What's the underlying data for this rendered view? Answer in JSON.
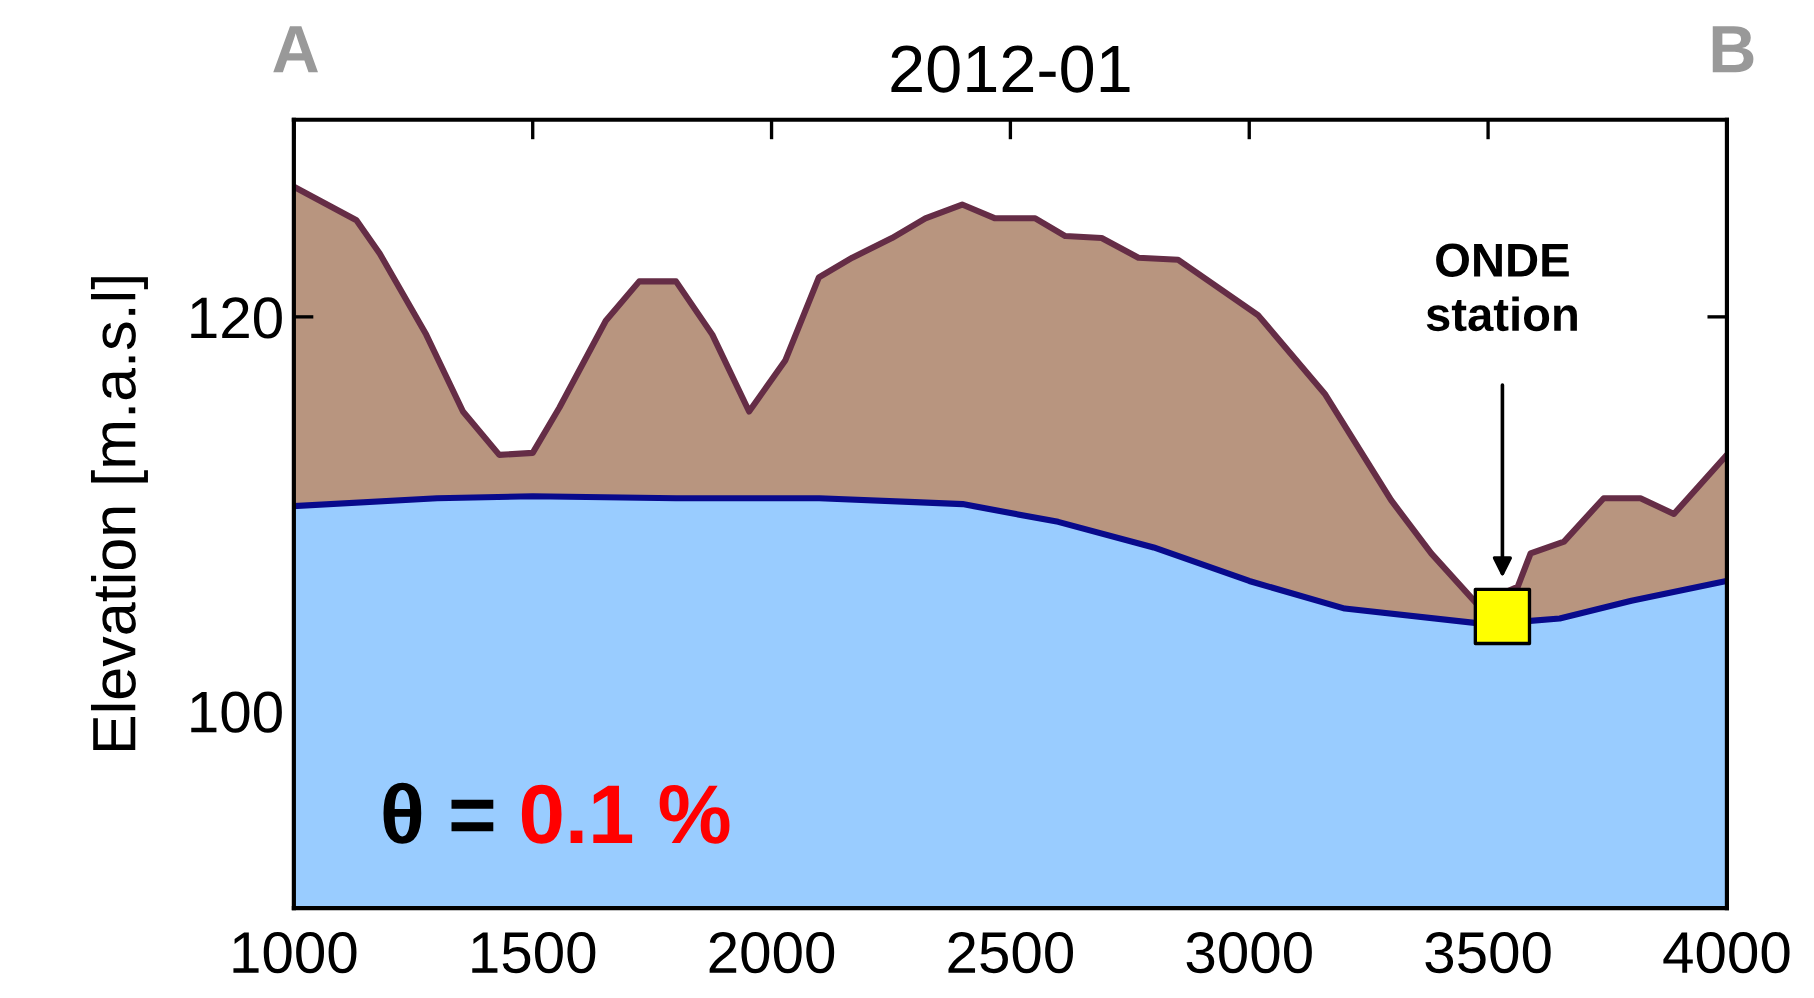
{
  "chart_data": {
    "type": "area",
    "title": "2012-01",
    "ylabel": "Elevation [m.a.s.l]",
    "xlim": [
      1000,
      4000
    ],
    "xticks": [
      1000,
      1500,
      2000,
      2500,
      3000,
      3500,
      4000
    ],
    "ylim": [
      90,
      130
    ],
    "yticks": [
      100,
      120
    ],
    "grid": false,
    "legend": false,
    "annotations": [
      "A",
      "B",
      "ONDE\nstation",
      "θ =",
      "0.1 %"
    ],
    "series": [
      {
        "color": "#b8957f",
        "x": [
          1000,
          1131,
          1180,
          1277,
          1354,
          1430,
          1500,
          1556,
          1653,
          1723,
          1800,
          1876,
          1953,
          2029,
          2099,
          2169,
          2252,
          2322,
          2399,
          2468,
          2552,
          2615,
          2691,
          2768,
          2851,
          3018,
          3158,
          3297,
          3381,
          3478,
          3562,
          3589,
          3659,
          3742,
          3819,
          3889,
          4000
        ],
        "values": [
          126.6,
          124.9,
          123.2,
          119.1,
          115.2,
          113.0,
          113.1,
          115.4,
          119.8,
          121.8,
          121.8,
          119.1,
          115.2,
          117.8,
          122.0,
          123.0,
          124.0,
          125.0,
          125.7,
          125.0,
          125.0,
          124.1,
          124.0,
          123.0,
          122.9,
          120.1,
          116.1,
          110.7,
          108.0,
          105.4,
          106.3,
          108.0,
          108.6,
          110.8,
          110.8,
          110.0,
          113.0
        ]
      },
      {
        "color": "#99ccff",
        "x": [
          1000,
          1300,
          1500,
          1800,
          2100,
          2300,
          2400,
          2600,
          2800,
          3000,
          3200,
          3500,
          3650,
          3800,
          4000
        ],
        "values": [
          110.4,
          110.8,
          110.9,
          110.8,
          110.8,
          110.6,
          110.5,
          109.6,
          108.3,
          106.6,
          105.2,
          104.4,
          104.7,
          105.6,
          106.6
        ]
      },
      {
        "type": "scatter",
        "marker": "square",
        "color": "#ffff00",
        "x": [
          3530
        ],
        "values": [
          104.8
        ]
      }
    ]
  }
}
